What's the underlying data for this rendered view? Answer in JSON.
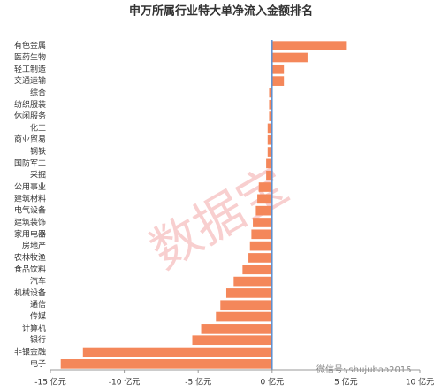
{
  "chart_data": {
    "type": "bar",
    "orientation": "horizontal",
    "title": "申万所属行业特大单净流入金额排名",
    "categories": [
      "有色金属",
      "医药生物",
      "轻工制造",
      "交通运输",
      "综合",
      "纺织服装",
      "休闲服务",
      "化工",
      "商业贸易",
      "钢铁",
      "国防军工",
      "采掘",
      "公用事业",
      "建筑材料",
      "电气设备",
      "建筑装饰",
      "家用电器",
      "房地产",
      "农林牧渔",
      "食品饮料",
      "汽车",
      "机械设备",
      "通信",
      "传媒",
      "计算机",
      "银行",
      "非银金融",
      "电子"
    ],
    "values": [
      5.0,
      2.4,
      0.8,
      0.8,
      -0.2,
      -0.2,
      -0.2,
      -0.3,
      -0.3,
      -0.3,
      -0.4,
      -0.4,
      -0.9,
      -1.0,
      -1.1,
      -1.3,
      -1.4,
      -1.5,
      -1.6,
      -2.0,
      -2.6,
      -3.1,
      -3.5,
      -3.8,
      -4.8,
      -5.4,
      -12.8,
      -14.3
    ],
    "color": "#f4875a",
    "xlim": [
      -15,
      10
    ],
    "xticks": [
      {
        "value": -15,
        "label": "-15 亿元"
      },
      {
        "value": -10,
        "label": "-10 亿元"
      },
      {
        "value": -5,
        "label": "-5 亿元"
      },
      {
        "value": 0,
        "label": "0 亿元"
      },
      {
        "value": 5,
        "label": "5 亿元"
      },
      {
        "value": 10,
        "label": "10 亿元"
      }
    ],
    "watermark": "数据宝",
    "source": "微信号: shujubao2015"
  }
}
